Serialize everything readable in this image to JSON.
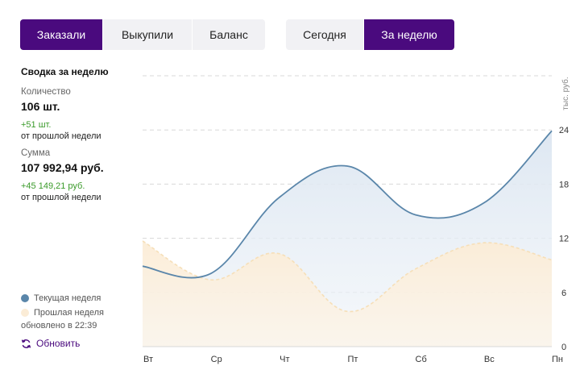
{
  "tabs_metric": [
    {
      "label": "Заказали",
      "active": true
    },
    {
      "label": "Выкупили",
      "active": false
    },
    {
      "label": "Баланс",
      "active": false
    }
  ],
  "tabs_period": [
    {
      "label": "Сегодня",
      "active": false
    },
    {
      "label": "За неделю",
      "active": true
    }
  ],
  "summary": {
    "title": "Сводка за неделю",
    "quantity_label": "Количество",
    "quantity_value": "106 шт.",
    "quantity_delta": "+51 шт.",
    "quantity_delta_sub": "от прошлой недели",
    "sum_label": "Сумма",
    "sum_value": "107 992,94 руб.",
    "sum_delta": "+45 149,21 руб.",
    "sum_delta_sub": "от прошлой недели"
  },
  "legend": {
    "current": "Текущая неделя",
    "previous": "Прошлая неделя",
    "updated": "обновлено в 22:39"
  },
  "refresh_label": "Обновить",
  "colors": {
    "accent": "#4a0a7e",
    "current_line": "#5a86aa",
    "previous_line": "#f6dfb8",
    "delta_positive": "#3a9a2a"
  },
  "chart_data": {
    "type": "area",
    "categories": [
      "Вт",
      "Ср",
      "Чт",
      "Пт",
      "Сб",
      "Вс",
      "Пн"
    ],
    "series": [
      {
        "name": "Текущая неделя",
        "values": [
          8.9,
          8.1,
          16.5,
          20.0,
          14.6,
          15.9,
          23.9
        ]
      },
      {
        "name": "Прошлая неделя",
        "values": [
          11.7,
          7.4,
          10.3,
          3.9,
          8.6,
          11.5,
          9.6
        ]
      }
    ],
    "yticks": [
      0,
      6,
      12,
      18,
      24
    ],
    "ylim": [
      0,
      30
    ],
    "ylabel": "тыс. руб.",
    "grid": true
  }
}
